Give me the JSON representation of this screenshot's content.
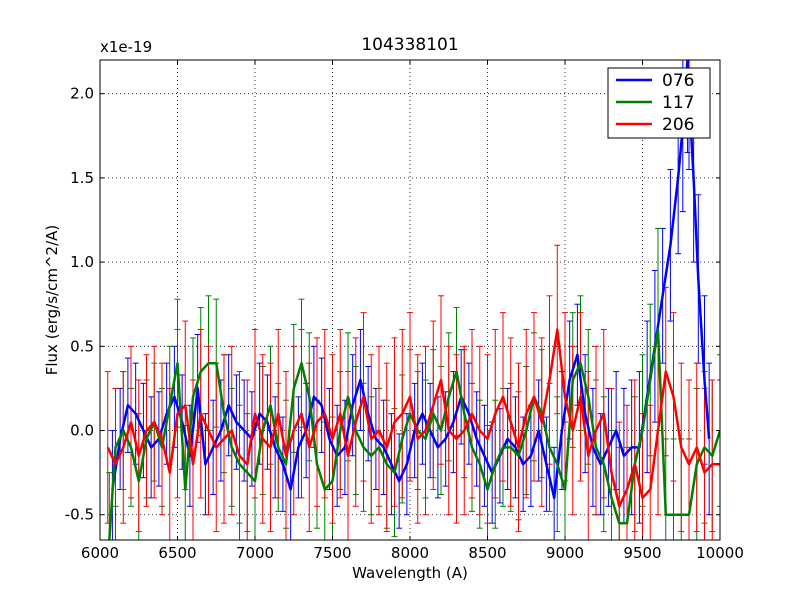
{
  "chart_data": {
    "type": "line",
    "title": "104338101",
    "xlabel": "Wavelength (A)",
    "ylabel": "Flux (erg/s/cm^2/A)",
    "offset_label": "x1e-19",
    "xlim": [
      6000,
      10000
    ],
    "ylim": [
      -0.65,
      2.2
    ],
    "xticks": [
      6000,
      6500,
      7000,
      7500,
      8000,
      8500,
      9000,
      9500,
      10000
    ],
    "xtick_labels": [
      "6000",
      "6500",
      "7000",
      "7500",
      "8000",
      "8500",
      "9000",
      "9500",
      "10000"
    ],
    "yticks": [
      -0.5,
      0.0,
      0.5,
      1.0,
      1.5,
      2.0
    ],
    "ytick_labels": [
      "-0.5",
      "0.0",
      "0.5",
      "1.0",
      "1.5",
      "2.0"
    ],
    "grid": true,
    "legend_position": "top-right",
    "series": [
      {
        "name": "076",
        "color": "#0000ff",
        "x": [
          6080,
          6130,
          6180,
          6230,
          6280,
          6330,
          6380,
          6430,
          6480,
          6530,
          6580,
          6630,
          6680,
          6730,
          6780,
          6830,
          6880,
          6930,
          6980,
          7030,
          7080,
          7130,
          7180,
          7230,
          7280,
          7330,
          7380,
          7430,
          7480,
          7530,
          7580,
          7630,
          7680,
          7730,
          7780,
          7830,
          7880,
          7930,
          7980,
          8030,
          8080,
          8130,
          8180,
          8230,
          8280,
          8330,
          8380,
          8430,
          8480,
          8530,
          8580,
          8630,
          8680,
          8730,
          8780,
          8830,
          8880,
          8930,
          8980,
          9030,
          9080,
          9130,
          9180,
          9230,
          9280,
          9330,
          9380,
          9430,
          9480,
          9530,
          9580,
          9630,
          9680,
          9730,
          9760,
          9790,
          9800,
          9830,
          9860,
          9900,
          9930
        ],
        "y": [
          -0.35,
          -0.05,
          0.15,
          0.1,
          0.0,
          -0.1,
          -0.05,
          0.1,
          0.2,
          0.05,
          -0.15,
          0.25,
          -0.2,
          -0.1,
          0.0,
          0.15,
          0.05,
          0.0,
          -0.05,
          0.1,
          0.05,
          -0.1,
          -0.2,
          -0.35,
          -0.1,
          0.0,
          0.2,
          0.15,
          -0.05,
          -0.15,
          -0.1,
          0.15,
          0.3,
          0.1,
          -0.05,
          -0.1,
          -0.2,
          -0.3,
          -0.2,
          0.0,
          0.1,
          0.0,
          -0.1,
          -0.05,
          0.05,
          0.2,
          0.1,
          -0.05,
          -0.15,
          -0.25,
          -0.15,
          -0.05,
          -0.1,
          -0.2,
          -0.15,
          0.0,
          -0.2,
          -0.4,
          0.0,
          0.3,
          0.45,
          0.1,
          -0.1,
          -0.2,
          -0.1,
          0.0,
          -0.15,
          -0.1,
          -0.1,
          0.2,
          0.5,
          0.8,
          1.1,
          1.5,
          1.8,
          2.2,
          2.0,
          1.5,
          0.9,
          0.3,
          -0.05
        ],
        "errors": [
          0.35,
          0.3,
          0.28,
          0.3,
          0.28,
          0.3,
          0.28,
          0.3,
          0.3,
          0.28,
          0.3,
          0.32,
          0.3,
          0.28,
          0.3,
          0.3,
          0.28,
          0.3,
          0.28,
          0.3,
          0.28,
          0.3,
          0.28,
          0.3,
          0.3,
          0.28,
          0.3,
          0.28,
          0.3,
          0.3,
          0.28,
          0.3,
          0.3,
          0.28,
          0.3,
          0.28,
          0.3,
          0.28,
          0.3,
          0.28,
          0.3,
          0.28,
          0.3,
          0.28,
          0.3,
          0.28,
          0.3,
          0.28,
          0.3,
          0.3,
          0.28,
          0.3,
          0.3,
          0.28,
          0.3,
          0.3,
          0.28,
          0.3,
          0.35,
          0.35,
          0.3,
          0.35,
          0.35,
          0.3,
          0.35,
          0.35,
          0.4,
          0.4,
          0.45,
          0.45,
          0.45,
          0.4,
          0.45,
          0.45,
          0.5,
          0.55,
          0.45,
          0.5,
          0.5,
          0.5,
          0.45
        ]
      },
      {
        "name": "117",
        "color": "#008000",
        "x": [
          6060,
          6100,
          6150,
          6200,
          6250,
          6300,
          6350,
          6400,
          6450,
          6500,
          6550,
          6600,
          6650,
          6700,
          6750,
          6800,
          6850,
          6900,
          6950,
          7000,
          7050,
          7100,
          7150,
          7200,
          7250,
          7300,
          7350,
          7400,
          7450,
          7500,
          7550,
          7600,
          7650,
          7700,
          7750,
          7800,
          7850,
          7900,
          7950,
          8000,
          8050,
          8100,
          8150,
          8200,
          8250,
          8300,
          8350,
          8400,
          8450,
          8500,
          8550,
          8600,
          8650,
          8700,
          8750,
          8800,
          8850,
          8900,
          8950,
          9000,
          9050,
          9100,
          9150,
          9200,
          9250,
          9300,
          9350,
          9400,
          9450,
          9500,
          9550,
          9600,
          9650,
          9700,
          9750,
          9800,
          9850,
          9900,
          9950,
          10000
        ],
        "y": [
          -0.65,
          -0.1,
          0.0,
          -0.1,
          -0.3,
          -0.05,
          0.05,
          -0.1,
          0.15,
          0.4,
          -0.35,
          0.2,
          0.35,
          0.4,
          0.4,
          0.1,
          -0.1,
          -0.2,
          -0.25,
          -0.3,
          0.0,
          0.15,
          -0.1,
          -0.2,
          0.25,
          0.4,
          0.2,
          -0.2,
          -0.35,
          -0.3,
          0.0,
          0.2,
          0.0,
          -0.1,
          -0.15,
          -0.1,
          -0.2,
          -0.25,
          -0.05,
          0.1,
          0.0,
          -0.05,
          0.1,
          0.0,
          0.2,
          0.35,
          0.1,
          -0.1,
          -0.2,
          -0.35,
          -0.2,
          -0.1,
          -0.1,
          -0.15,
          0.0,
          0.2,
          0.1,
          -0.1,
          -0.2,
          -0.35,
          0.3,
          0.4,
          0.2,
          -0.1,
          -0.2,
          -0.4,
          -0.55,
          -0.55,
          -0.2,
          0.0,
          0.3,
          0.6,
          -0.5,
          -0.5,
          -0.5,
          -0.5,
          -0.2,
          -0.1,
          -0.15,
          0.0
        ],
        "errors": [
          0.4,
          0.35,
          0.35,
          0.35,
          0.4,
          0.35,
          0.35,
          0.35,
          0.35,
          0.38,
          0.38,
          0.35,
          0.38,
          0.4,
          0.38,
          0.35,
          0.35,
          0.35,
          0.35,
          0.35,
          0.38,
          0.35,
          0.38,
          0.38,
          0.38,
          0.38,
          0.38,
          0.38,
          0.4,
          0.38,
          0.35,
          0.38,
          0.38,
          0.38,
          0.35,
          0.35,
          0.38,
          0.38,
          0.38,
          0.38,
          0.35,
          0.35,
          0.38,
          0.38,
          0.38,
          0.38,
          0.38,
          0.38,
          0.38,
          0.38,
          0.38,
          0.35,
          0.38,
          0.38,
          0.38,
          0.38,
          0.38,
          0.38,
          0.4,
          0.4,
          0.4,
          0.4,
          0.4,
          0.4,
          0.4,
          0.4,
          0.45,
          0.45,
          0.4,
          0.45,
          0.45,
          0.6,
          0.45,
          0.45,
          0.45,
          0.45,
          0.45,
          0.45,
          0.45,
          0.45
        ]
      },
      {
        "name": "206",
        "color": "#ff0000",
        "x": [
          6050,
          6100,
          6150,
          6200,
          6250,
          6300,
          6350,
          6400,
          6450,
          6500,
          6550,
          6600,
          6650,
          6700,
          6750,
          6800,
          6850,
          6900,
          6950,
          7000,
          7050,
          7100,
          7150,
          7200,
          7250,
          7300,
          7350,
          7400,
          7450,
          7500,
          7550,
          7600,
          7650,
          7700,
          7750,
          7800,
          7850,
          7900,
          7950,
          8000,
          8050,
          8100,
          8150,
          8200,
          8250,
          8300,
          8350,
          8400,
          8450,
          8500,
          8550,
          8600,
          8650,
          8700,
          8750,
          8800,
          8850,
          8900,
          8950,
          9000,
          9050,
          9100,
          9150,
          9200,
          9250,
          9300,
          9350,
          9400,
          9450,
          9500,
          9550,
          9600,
          9650,
          9700,
          9750,
          9800,
          9850,
          9900,
          9950,
          10000
        ],
        "y": [
          -0.1,
          -0.2,
          -0.1,
          0.05,
          -0.15,
          0.0,
          0.05,
          -0.05,
          -0.25,
          0.1,
          0.15,
          -0.2,
          0.1,
          0.0,
          -0.1,
          -0.05,
          0.0,
          -0.15,
          -0.2,
          0.1,
          -0.05,
          -0.1,
          0.1,
          -0.15,
          0.0,
          0.1,
          -0.1,
          0.05,
          0.1,
          -0.05,
          0.1,
          -0.15,
          0.05,
          0.2,
          -0.05,
          0.0,
          -0.1,
          0.05,
          0.1,
          0.2,
          -0.05,
          0.0,
          0.15,
          0.3,
          0.0,
          -0.05,
          0.0,
          0.1,
          0.0,
          -0.05,
          0.1,
          0.2,
          0.05,
          -0.1,
          0.1,
          0.2,
          0.05,
          0.3,
          0.6,
          0.2,
          0.0,
          0.2,
          -0.15,
          0.0,
          0.1,
          -0.25,
          -0.45,
          -0.35,
          -0.2,
          -0.4,
          -0.35,
          0.0,
          0.35,
          0.2,
          -0.1,
          -0.2,
          -0.1,
          -0.25,
          -0.2,
          -0.2
        ],
        "errors": [
          0.45,
          0.45,
          0.45,
          0.45,
          0.45,
          0.45,
          0.45,
          0.45,
          0.5,
          0.5,
          0.5,
          0.5,
          0.5,
          0.5,
          0.5,
          0.5,
          0.5,
          0.5,
          0.5,
          0.5,
          0.5,
          0.5,
          0.5,
          0.5,
          0.5,
          0.5,
          0.5,
          0.5,
          0.5,
          0.5,
          0.5,
          0.5,
          0.5,
          0.5,
          0.5,
          0.5,
          0.5,
          0.5,
          0.5,
          0.5,
          0.5,
          0.5,
          0.5,
          0.5,
          0.5,
          0.5,
          0.5,
          0.5,
          0.5,
          0.5,
          0.5,
          0.5,
          0.5,
          0.5,
          0.5,
          0.5,
          0.5,
          0.5,
          0.5,
          0.5,
          0.5,
          0.5,
          0.5,
          0.5,
          0.5,
          0.5,
          0.5,
          0.5,
          0.5,
          0.5,
          0.5,
          0.5,
          0.5,
          0.5,
          0.5,
          0.5,
          0.5,
          0.5,
          0.5,
          0.5
        ]
      }
    ]
  }
}
